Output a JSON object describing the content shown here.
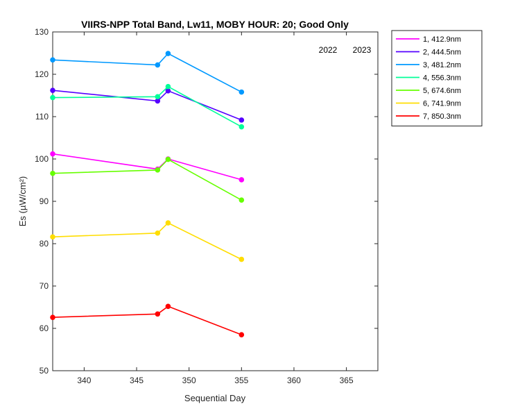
{
  "chart_data": {
    "type": "line",
    "title": "VIIRS-NPP Total Band,  Lw11, MOBY HOUR: 20;  Good Only",
    "xlabel": "Sequential Day",
    "ylabel": "Es (µW/cm²)",
    "xlim": [
      337,
      368
    ],
    "ylim": [
      50,
      130
    ],
    "xticks": [
      340,
      345,
      350,
      355,
      360,
      365
    ],
    "yticks": [
      50,
      60,
      70,
      80,
      90,
      100,
      110,
      120,
      130
    ],
    "year_labels": [
      "2022",
      "2023"
    ],
    "grid": false,
    "legend_position": "outside-right",
    "x": [
      337,
      347,
      348,
      355
    ],
    "series": [
      {
        "name": "1, 412.9nm",
        "color": "#ff00ff",
        "values": [
          101.2,
          97.6,
          100.0,
          95.1
        ]
      },
      {
        "name": "2, 444.5nm",
        "color": "#5500ff",
        "values": [
          116.2,
          113.7,
          116.1,
          109.2
        ]
      },
      {
        "name": "3, 481.2nm",
        "color": "#0099ff",
        "values": [
          123.4,
          122.2,
          124.9,
          115.8
        ]
      },
      {
        "name": "4, 556.3nm",
        "color": "#00ff99",
        "values": [
          114.5,
          114.7,
          117.1,
          107.6
        ]
      },
      {
        "name": "5, 674.6nm",
        "color": "#66ff00",
        "values": [
          96.6,
          97.4,
          99.9,
          90.3
        ]
      },
      {
        "name": "6, 741.9nm",
        "color": "#ffdd00",
        "values": [
          81.6,
          82.5,
          84.9,
          76.3
        ]
      },
      {
        "name": "7, 850.3nm",
        "color": "#ff0000",
        "values": [
          62.6,
          63.4,
          65.2,
          58.5
        ]
      }
    ]
  }
}
